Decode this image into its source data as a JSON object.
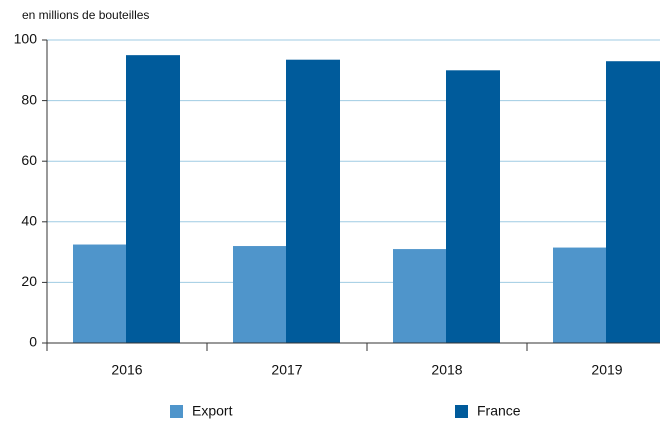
{
  "chart_data": {
    "type": "bar",
    "y_axis_label": "en millions de bouteilles",
    "categories": [
      "2016",
      "2017",
      "2018",
      "2019"
    ],
    "series": [
      {
        "name": "Export",
        "color": "#4f95cb",
        "values": [
          32.5,
          32,
          31,
          31.5
        ]
      },
      {
        "name": "France",
        "color": "#005b9b",
        "values": [
          95,
          93.5,
          90,
          93
        ]
      }
    ],
    "ylim": [
      0,
      100
    ],
    "yticks": [
      0,
      20,
      40,
      60,
      80,
      100
    ],
    "grid": true
  }
}
